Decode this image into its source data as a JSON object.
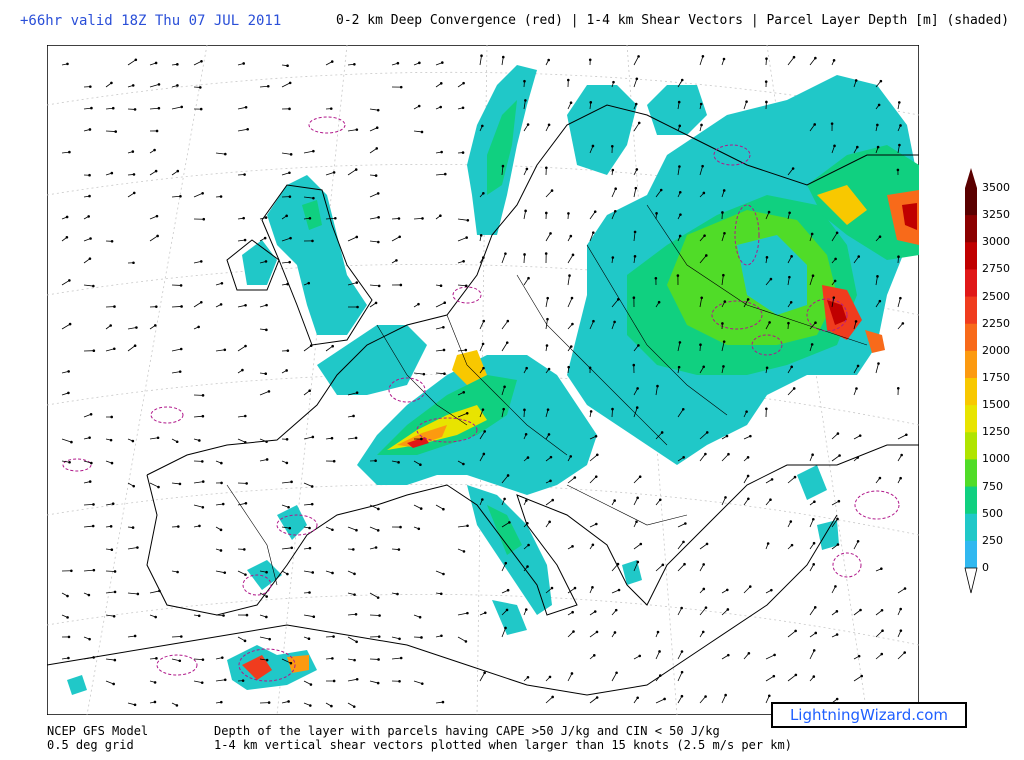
{
  "header": {
    "valid": "+66hr valid 18Z Thu 07 JUL 2011",
    "title": "0-2 km Deep Convergence (red) | 1-4 km Shear Vectors | Parcel Layer Depth [m] (shaded)"
  },
  "footer": {
    "model": "NCEP GFS Model",
    "grid": "0.5 deg grid",
    "desc1": "Depth of the layer with parcels having CAPE >50 J/kg and CIN < 50 J/kg",
    "desc2": "1-4 km vertical shear vectors plotted when larger than 15 knots (2.5 m/s per km)"
  },
  "brand": "LightningWizard.com",
  "colorbar": {
    "labels": [
      "3500",
      "3250",
      "3000",
      "2750",
      "2500",
      "2250",
      "2000",
      "1750",
      "1500",
      "1250",
      "1000",
      "750",
      "500",
      "250",
      "0"
    ],
    "colors": [
      "#5a0000",
      "#8b0000",
      "#c00000",
      "#e01818",
      "#f03c1e",
      "#f86a1a",
      "#fc9a10",
      "#f8c800",
      "#e8e400",
      "#b0e400",
      "#50dc28",
      "#10d080",
      "#20c8c8",
      "#30b8f0"
    ]
  },
  "colors": {
    "convergence": "#b0188a",
    "borders": "#000000",
    "vectors": "#000000"
  }
}
